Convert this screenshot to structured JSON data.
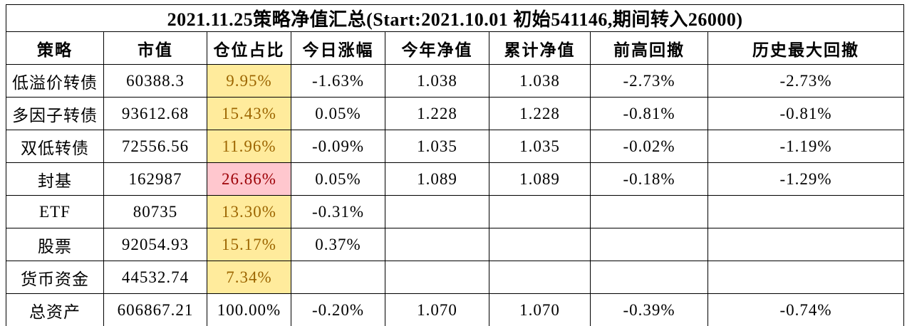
{
  "colors": {
    "background": "#FFFFFF",
    "border": "#000000",
    "text": "#000000",
    "highlight_neutral_bg": "#FFEB9C",
    "highlight_neutral_text": "#9C6500",
    "highlight_bad_bg": "#FFC7CE",
    "highlight_bad_text": "#9C0006"
  },
  "chart_data": {
    "type": "table",
    "title": "2021.11.25策略净值汇总(Start:2021.10.01 初始541146,期间转入26000)",
    "columns": [
      "策略",
      "市值",
      "仓位占比",
      "今日涨幅",
      "今年净值",
      "累计净值",
      "前高回撤",
      "历史最大回撤"
    ],
    "column_keys": [
      "strategy",
      "market_value",
      "position_pct",
      "today_change",
      "ytd_nav",
      "cumulative_nav",
      "drawdown_from_high",
      "historical_max_drawdown"
    ],
    "rows": [
      {
        "strategy": "低溢价转债",
        "market_value": "60388.3",
        "position_pct": "9.95%",
        "today_change": "-1.63%",
        "ytd_nav": "1.038",
        "cumulative_nav": "1.038",
        "drawdown_from_high": "-2.73%",
        "historical_max_drawdown": "-2.73%",
        "position_highlight": "neutral"
      },
      {
        "strategy": "多因子转债",
        "market_value": "93612.68",
        "position_pct": "15.43%",
        "today_change": "0.05%",
        "ytd_nav": "1.228",
        "cumulative_nav": "1.228",
        "drawdown_from_high": "-0.81%",
        "historical_max_drawdown": "-0.81%",
        "position_highlight": "neutral"
      },
      {
        "strategy": "双低转债",
        "market_value": "72556.56",
        "position_pct": "11.96%",
        "today_change": "-0.09%",
        "ytd_nav": "1.035",
        "cumulative_nav": "1.035",
        "drawdown_from_high": "-0.02%",
        "historical_max_drawdown": "-1.19%",
        "position_highlight": "neutral"
      },
      {
        "strategy": "封基",
        "market_value": "162987",
        "position_pct": "26.86%",
        "today_change": "0.05%",
        "ytd_nav": "1.089",
        "cumulative_nav": "1.089",
        "drawdown_from_high": "-0.18%",
        "historical_max_drawdown": "-1.29%",
        "position_highlight": "bad"
      },
      {
        "strategy": "ETF",
        "market_value": "80735",
        "position_pct": "13.30%",
        "today_change": "-0.31%",
        "ytd_nav": "",
        "cumulative_nav": "",
        "drawdown_from_high": "",
        "historical_max_drawdown": "",
        "position_highlight": "neutral"
      },
      {
        "strategy": "股票",
        "market_value": "92054.93",
        "position_pct": "15.17%",
        "today_change": "0.37%",
        "ytd_nav": "",
        "cumulative_nav": "",
        "drawdown_from_high": "",
        "historical_max_drawdown": "",
        "position_highlight": "neutral"
      },
      {
        "strategy": "货币资金",
        "market_value": "44532.74",
        "position_pct": "7.34%",
        "today_change": "",
        "ytd_nav": "",
        "cumulative_nav": "",
        "drawdown_from_high": "",
        "historical_max_drawdown": "",
        "position_highlight": "neutral"
      },
      {
        "strategy": "总资产",
        "market_value": "606867.21",
        "position_pct": "100.00%",
        "today_change": "-0.20%",
        "ytd_nav": "1.070",
        "cumulative_nav": "1.070",
        "drawdown_from_high": "-0.39%",
        "historical_max_drawdown": "-0.74%",
        "position_highlight": "none"
      }
    ]
  }
}
